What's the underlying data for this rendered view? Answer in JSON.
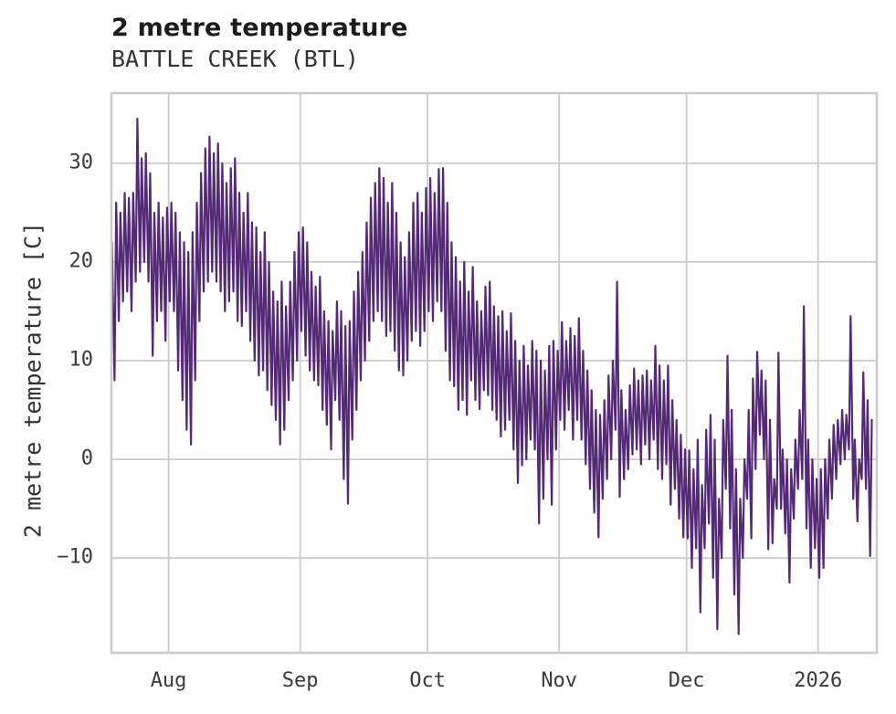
{
  "title": "2 metre temperature",
  "subtitle": "BATTLE CREEK (BTL)",
  "colors": {
    "line": "#542a77",
    "grid": "#cbcbcb",
    "title_text": "#1c1c1c",
    "tick_text": "#3a3a3a",
    "background": "#ffffff"
  },
  "chart_data": {
    "type": "line",
    "title": "2 metre temperature",
    "subtitle": "BATTLE CREEK (BTL)",
    "xlabel": "",
    "ylabel": "2 metre temperature [C]",
    "grid": true,
    "legend": "none",
    "series_name": "2 metre temperature [C]",
    "sampling": "daily max/min envelope of sub-daily temperature trace, 180 days",
    "start_date": "2025-07-18",
    "end_date": "2026-01-13",
    "ylim": [
      -19.6,
      37.1
    ],
    "y_ticks": [
      {
        "value": 30,
        "label": "30"
      },
      {
        "value": 20,
        "label": "20"
      },
      {
        "value": 10,
        "label": "10"
      },
      {
        "value": 0,
        "label": "0"
      },
      {
        "value": -10,
        "label": "−10"
      }
    ],
    "x_ticks": [
      {
        "label": "Aug",
        "day": 14
      },
      {
        "label": "Sep",
        "day": 45
      },
      {
        "label": "Oct",
        "day": 75
      },
      {
        "label": "Nov",
        "day": 106
      },
      {
        "label": "Dec",
        "day": 136
      },
      {
        "label": "2026",
        "day": 167
      }
    ],
    "t_max": [
      22,
      26,
      25,
      27,
      26.5,
      27,
      34.5,
      30.5,
      31,
      29,
      25,
      26,
      24.5,
      25.5,
      26,
      25,
      23,
      22,
      21,
      23,
      26,
      29,
      31.5,
      32.7,
      31,
      32,
      30,
      28,
      29.5,
      30.5,
      27,
      25,
      27,
      24,
      23.5,
      21,
      23,
      20,
      17,
      16,
      18,
      15.5,
      18,
      21,
      23,
      23.5,
      22,
      19,
      17.5,
      18.5,
      15,
      14,
      13,
      16,
      15,
      13.5,
      14,
      17,
      19,
      21,
      24,
      26.5,
      28,
      29.5,
      28.5,
      26,
      28,
      25,
      22,
      20.5,
      23,
      26,
      27,
      25,
      27.5,
      28.5,
      27,
      29.4,
      29.5,
      26,
      22,
      20.5,
      18,
      20,
      17,
      19.5,
      16,
      15,
      17.5,
      18,
      15.5,
      14.5,
      15,
      13,
      14.8,
      12,
      10,
      11.5,
      9.5,
      12,
      11,
      10,
      9,
      11.5,
      12,
      11,
      13.9,
      12,
      13.3,
      12.5,
      14.3,
      11,
      9,
      7,
      5,
      4.5,
      6,
      8.5,
      10,
      18,
      7,
      5,
      7.5,
      9.2,
      8,
      8.5,
      9,
      8,
      11.5,
      9.5,
      8,
      9.5,
      6,
      4,
      2.5,
      1,
      0.9,
      -1,
      2,
      -2.6,
      3,
      4.5,
      2,
      -4,
      4,
      10.5,
      5,
      -1,
      -4,
      0,
      5,
      8.2,
      10.9,
      9,
      8,
      4,
      -2,
      10.8,
      1,
      0,
      -1,
      2,
      5,
      15.5,
      2,
      0,
      -2,
      -1,
      0,
      2,
      3.5,
      4,
      5,
      4.5,
      14.5,
      2,
      0,
      8.8,
      6,
      4
    ],
    "t_min": [
      16,
      8,
      14,
      16,
      17,
      15,
      18,
      19,
      20,
      18,
      10.5,
      14,
      15,
      12,
      16,
      15,
      9,
      6,
      3,
      1.5,
      8,
      14,
      17,
      18,
      19,
      18,
      17,
      15,
      16,
      17,
      14,
      13.5,
      15,
      12,
      10,
      8.5,
      9,
      7,
      5.5,
      4,
      1.5,
      3,
      6,
      8,
      10,
      13,
      10.5,
      9,
      8,
      7.5,
      5,
      3.5,
      1,
      6,
      4,
      -2,
      -4.5,
      2,
      5,
      8,
      10,
      12,
      14,
      15,
      14,
      12.5,
      13,
      11,
      9,
      8.5,
      10,
      12,
      13,
      11.5,
      13,
      15,
      14,
      16,
      15,
      11,
      8,
      7.4,
      5,
      6,
      4.5,
      8,
      6,
      5.1,
      7,
      6.5,
      5,
      4,
      2.3,
      3,
      4,
      1,
      -2.4,
      -0.6,
      0,
      2,
      1,
      -6.5,
      -4,
      0,
      -4.6,
      1,
      4,
      3,
      5,
      2,
      4,
      2,
      -0.5,
      -3,
      -5.4,
      -7.9,
      -4,
      -2,
      0,
      3,
      -3.8,
      -2,
      -1,
      0.5,
      1,
      -0.5,
      1.5,
      0,
      2,
      -1,
      -2,
      -0.5,
      -4.6,
      -3,
      -6,
      -7.9,
      -8,
      -11,
      -9,
      -15.5,
      -9,
      -6.5,
      -12,
      -17.2,
      -10,
      -3,
      -7,
      -13.7,
      -17.7,
      -10,
      -4,
      -8,
      -1,
      2.5,
      0,
      -9.1,
      -8.5,
      -5,
      -5,
      -7.5,
      -12.5,
      -6,
      -3,
      -2,
      -7,
      -11,
      -9,
      -12,
      -11,
      -6,
      -4,
      -2,
      -0.5,
      0,
      1,
      -4,
      -6.3,
      -2,
      -3,
      -9.8
    ]
  }
}
